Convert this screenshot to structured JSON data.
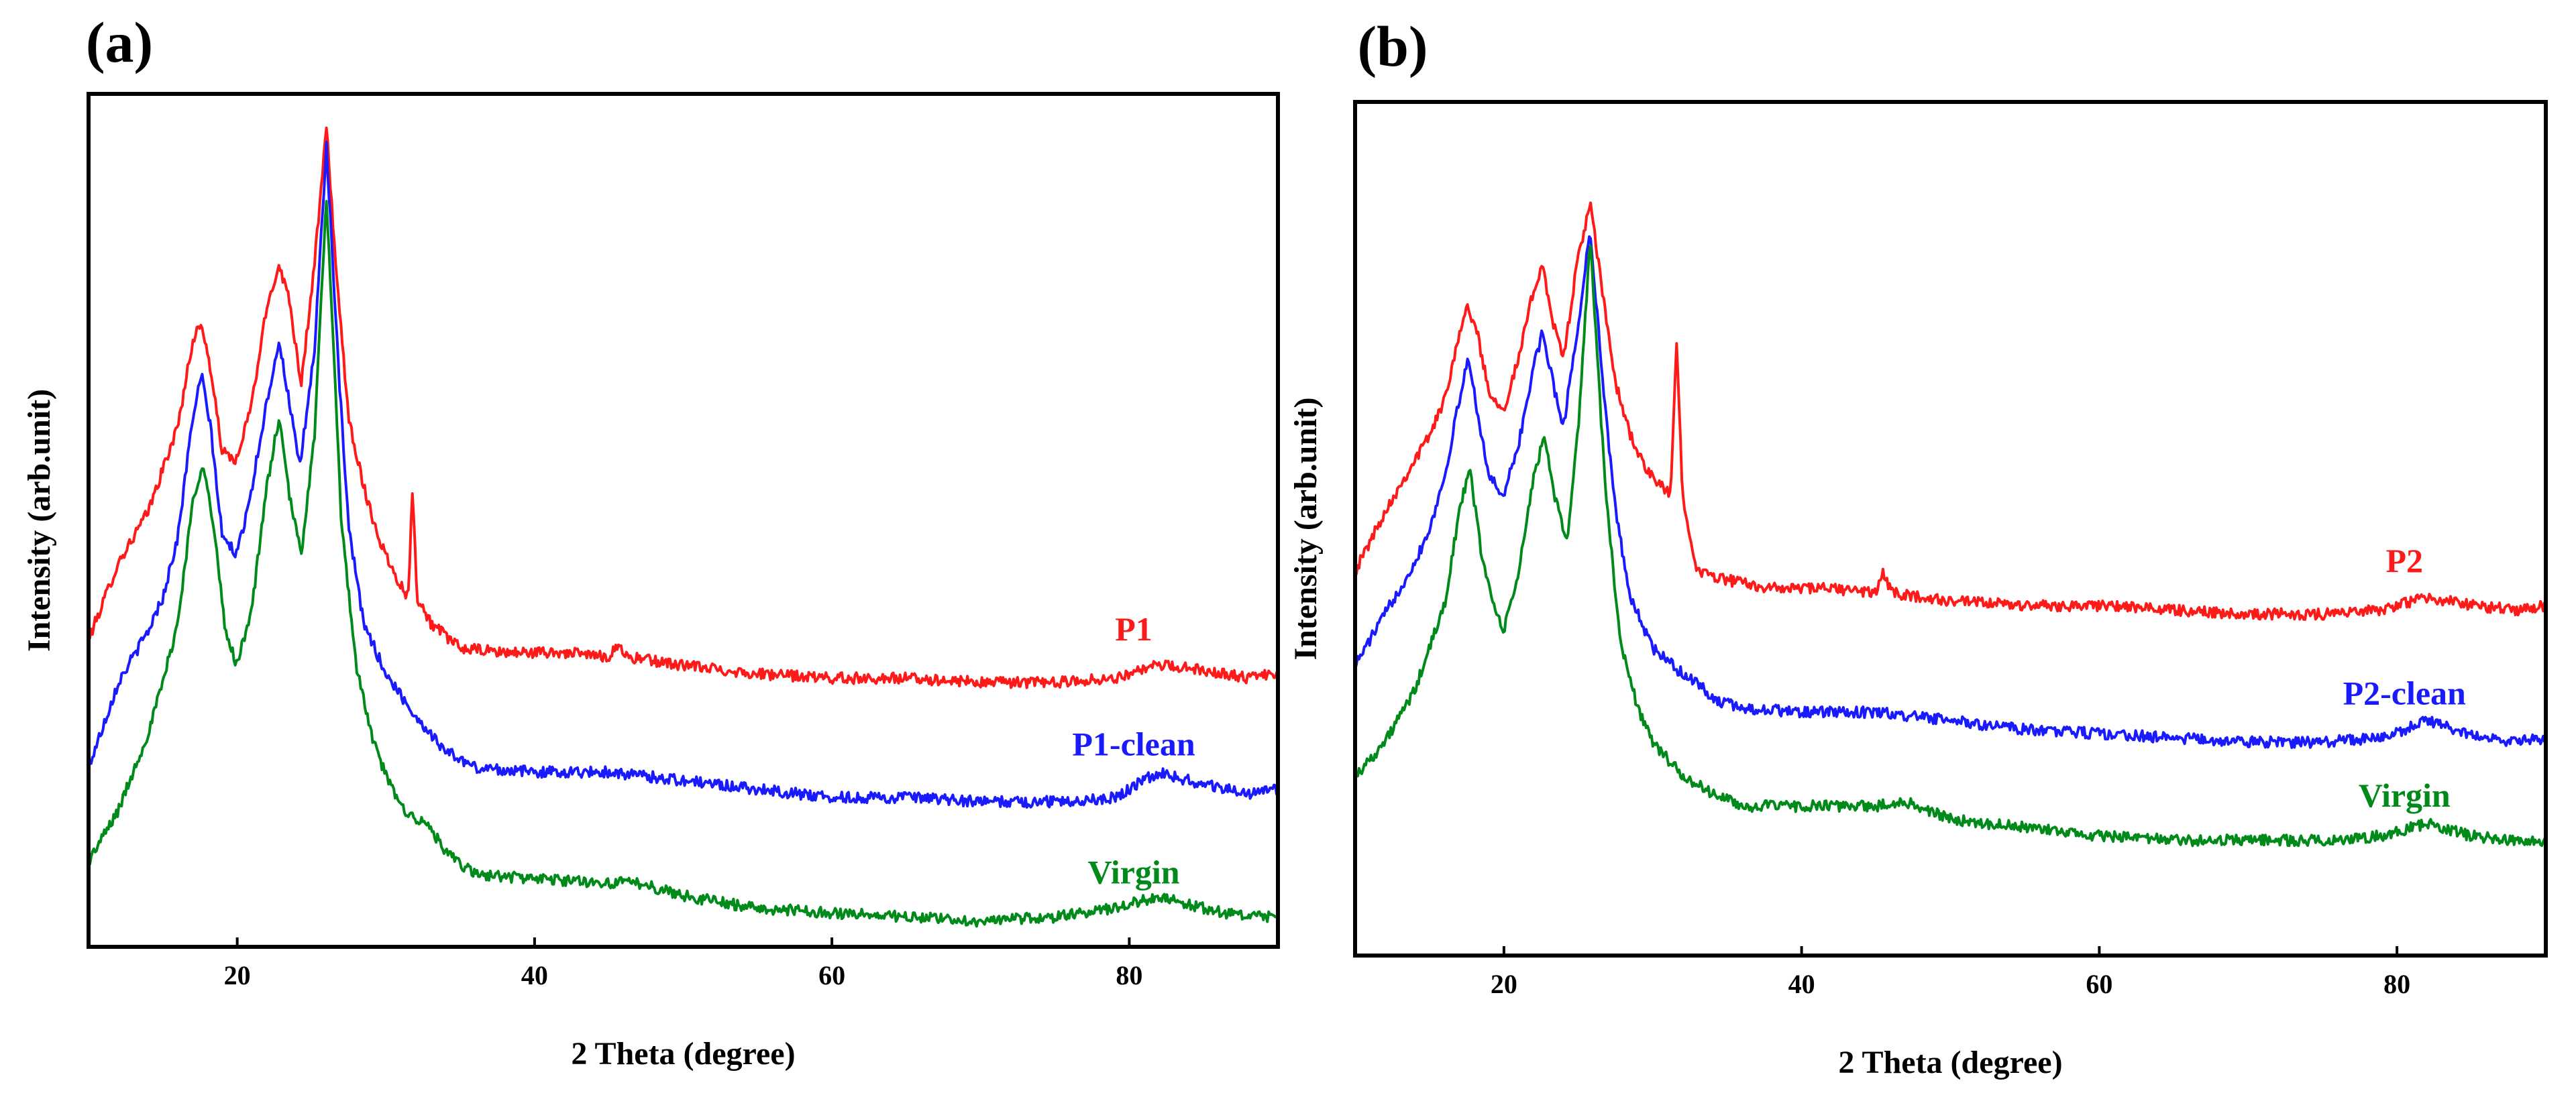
{
  "chart_data": [
    {
      "type": "line",
      "panel_label": "(a)",
      "xlabel": "2 Theta (degree)",
      "ylabel": "Intensity (arb.unit)",
      "xlim": [
        10,
        90
      ],
      "ylim": [
        0,
        100
      ],
      "xticks": [
        20,
        40,
        60,
        80
      ],
      "yticks": [],
      "grid": false,
      "legend": "inline labels at right end of each curve",
      "series": [
        {
          "name": "P1",
          "color": "#ff1a1a",
          "x": [
            10,
            12,
            14,
            15,
            16,
            17,
            17.5,
            18,
            19,
            20,
            21,
            22,
            22.8,
            23.5,
            24.3,
            25.2,
            26,
            26.8,
            27.5,
            28.5,
            29.5,
            30.5,
            31.5,
            31.8,
            32.1,
            33,
            35,
            38,
            42,
            45,
            45.6,
            46.2,
            50,
            55,
            60,
            65,
            70,
            75,
            79,
            82,
            85,
            88,
            90
          ],
          "y": [
            36,
            45,
            51,
            56,
            61,
            71,
            73,
            70,
            58,
            57,
            64,
            75,
            80,
            76,
            66,
            80,
            96,
            76,
            62,
            54,
            48,
            44,
            41,
            54,
            41,
            38,
            35,
            34.5,
            34.5,
            34,
            35.5,
            34,
            33,
            32,
            31.5,
            31.5,
            31,
            31,
            31.5,
            33,
            32.5,
            31.5,
            32
          ]
        },
        {
          "name": "P1-clean",
          "color": "#1a1aff",
          "x": [
            10,
            12,
            14,
            15,
            16,
            17,
            17.6,
            18.2,
            19,
            20,
            21,
            22,
            22.8,
            23.5,
            24.2,
            25.2,
            26,
            26.8,
            27.5,
            28.5,
            30,
            32,
            34,
            36,
            40,
            45,
            50,
            55,
            60,
            65,
            70,
            75,
            79,
            82,
            85,
            88,
            90
          ],
          "y": [
            21,
            31,
            37,
            41,
            48,
            62,
            67,
            61,
            48,
            46,
            54,
            64,
            71,
            64,
            56,
            70,
            94,
            68,
            49,
            38,
            32,
            27,
            23,
            21,
            20.5,
            20.5,
            19.5,
            18.5,
            17.5,
            17.5,
            17,
            17,
            17.5,
            20.5,
            19,
            18,
            18.5
          ]
        },
        {
          "name": "Virgin",
          "color": "#008a1a",
          "x": [
            10,
            12,
            14,
            15,
            16,
            17,
            17.7,
            18.5,
            19.2,
            20,
            21,
            22,
            22.8,
            23.5,
            24.3,
            25.2,
            26,
            27,
            28,
            29,
            30,
            31,
            32,
            33,
            34,
            36,
            40,
            45,
            47,
            50,
            55,
            60,
            65,
            70,
            75,
            79,
            82,
            85,
            88,
            90
          ],
          "y": [
            10,
            16,
            25,
            31,
            38,
            52,
            57,
            48,
            37,
            33,
            40,
            54,
            62,
            53,
            46,
            60,
            88,
            50,
            33,
            25,
            20,
            16.5,
            15,
            14,
            11,
            8.5,
            8,
            7.5,
            7.5,
            6,
            4.5,
            4,
            3.5,
            3,
            3.5,
            4.5,
            6,
            4.5,
            3.5,
            3.5
          ]
        }
      ]
    },
    {
      "type": "line",
      "panel_label": "(b)",
      "xlabel": "2 Theta (degree)",
      "ylabel": "Intensity (arb.unit)",
      "xlim": [
        10,
        90
      ],
      "ylim": [
        0,
        100
      ],
      "xticks": [
        20,
        40,
        60,
        80
      ],
      "yticks": [],
      "grid": false,
      "legend": "inline labels at right end of each curve",
      "series": [
        {
          "name": "P2",
          "color": "#ff1a1a",
          "x": [
            10,
            12,
            14,
            15,
            16,
            17,
            17.6,
            18.2,
            19,
            20,
            21,
            22,
            22.6,
            23.3,
            24,
            25,
            25.8,
            26.6,
            27.5,
            28.5,
            29.5,
            30.5,
            31.2,
            31.6,
            32,
            33,
            35,
            38,
            42,
            45,
            45.5,
            46,
            50,
            55,
            60,
            65,
            70,
            75,
            79,
            82,
            85,
            88,
            90
          ],
          "y": [
            45,
            52,
            58,
            61,
            65,
            73,
            76,
            73,
            66,
            64,
            70,
            78,
            81,
            74,
            70,
            82,
            88,
            78,
            67,
            61,
            57,
            55,
            54,
            72,
            54,
            45,
            44,
            43,
            43,
            42.5,
            45,
            42.5,
            41.5,
            41,
            41,
            40.5,
            40,
            40,
            40.5,
            42,
            41,
            40.5,
            41
          ]
        },
        {
          "name": "P2-clean",
          "color": "#1a1aff",
          "x": [
            10,
            12,
            14,
            15,
            16,
            17,
            17.6,
            18.3,
            19,
            20,
            21,
            22,
            22.6,
            23.3,
            24,
            25,
            25.8,
            26.7,
            27.5,
            28.5,
            30,
            32,
            33,
            34,
            36,
            40,
            45,
            50,
            55,
            60,
            65,
            70,
            75,
            79,
            82,
            85,
            88,
            90
          ],
          "y": [
            34,
            40,
            46,
            50,
            56,
            65,
            70,
            63,
            56,
            54,
            60,
            69,
            73,
            67,
            62,
            74,
            85,
            66,
            52,
            42,
            36,
            33,
            32,
            30,
            29,
            28.5,
            28.5,
            27.5,
            26.5,
            26,
            25.5,
            25,
            25,
            25.5,
            27.5,
            26,
            25,
            25.5
          ]
        },
        {
          "name": "Virgin",
          "color": "#008a1a",
          "x": [
            10,
            12,
            14,
            15,
            16,
            17,
            17.7,
            18.5,
            19.3,
            20,
            21,
            22,
            22.7,
            23.4,
            24.2,
            25,
            25.8,
            26.8,
            27.8,
            29,
            30,
            31,
            32,
            33,
            34,
            36,
            40,
            45,
            47,
            50,
            55,
            60,
            65,
            70,
            75,
            79,
            82,
            85,
            88,
            90
          ],
          "y": [
            21,
            25,
            31,
            36,
            41,
            52,
            57,
            47,
            41,
            38,
            45,
            56,
            61,
            54,
            48,
            62,
            84,
            55,
            37,
            29,
            25,
            23,
            21,
            20,
            19,
            17.5,
            17.5,
            17.5,
            18,
            16,
            15,
            14,
            13.5,
            13.5,
            13.5,
            14,
            15.5,
            14,
            13.5,
            13.5
          ]
        }
      ]
    }
  ]
}
